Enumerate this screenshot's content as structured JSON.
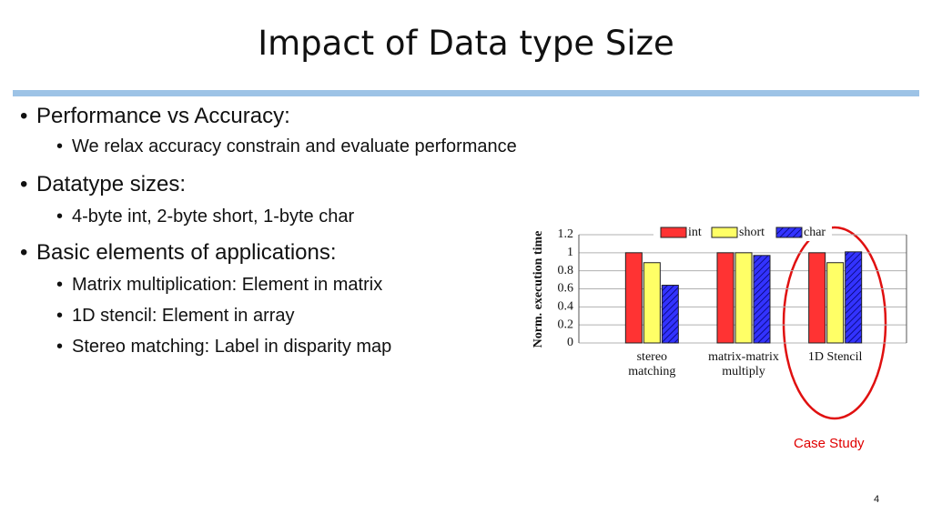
{
  "title": "Impact of Data type Size",
  "bullets": [
    {
      "text": "Performance vs Accuracy:",
      "sub": [
        "We relax accuracy constrain and evaluate performance"
      ]
    },
    {
      "text": "Datatype sizes:",
      "sub": [
        "4-byte int, 2-byte short, 1-byte char"
      ]
    },
    {
      "text": "Basic elements of applications:",
      "sub": [
        "Matrix multiplication: Element in matrix",
        "1D stencil: Element in array",
        "Stereo matching: Label in disparity map"
      ]
    }
  ],
  "chart_data": {
    "type": "bar",
    "y_label": "Norm. execution time",
    "categories": [
      "stereo matching",
      "matrix-matrix multiply",
      "1D Stencil"
    ],
    "series": [
      {
        "name": "int",
        "color": "#ff3333",
        "values": [
          1,
          1,
          1
        ]
      },
      {
        "name": "short",
        "color": "#ffff66",
        "values": [
          0.89,
          1,
          0.89
        ]
      },
      {
        "name": "char",
        "color": "#3333ff",
        "pattern": "hatch",
        "values": [
          0.64,
          0.97,
          1.01
        ]
      }
    ],
    "ylim": [
      0,
      1.2
    ],
    "yticks": [
      0,
      0.2,
      0.4,
      0.6,
      0.8,
      1,
      1.2
    ],
    "grid": true,
    "legend": "top"
  },
  "annotation": "Case Study",
  "page_number": "4"
}
